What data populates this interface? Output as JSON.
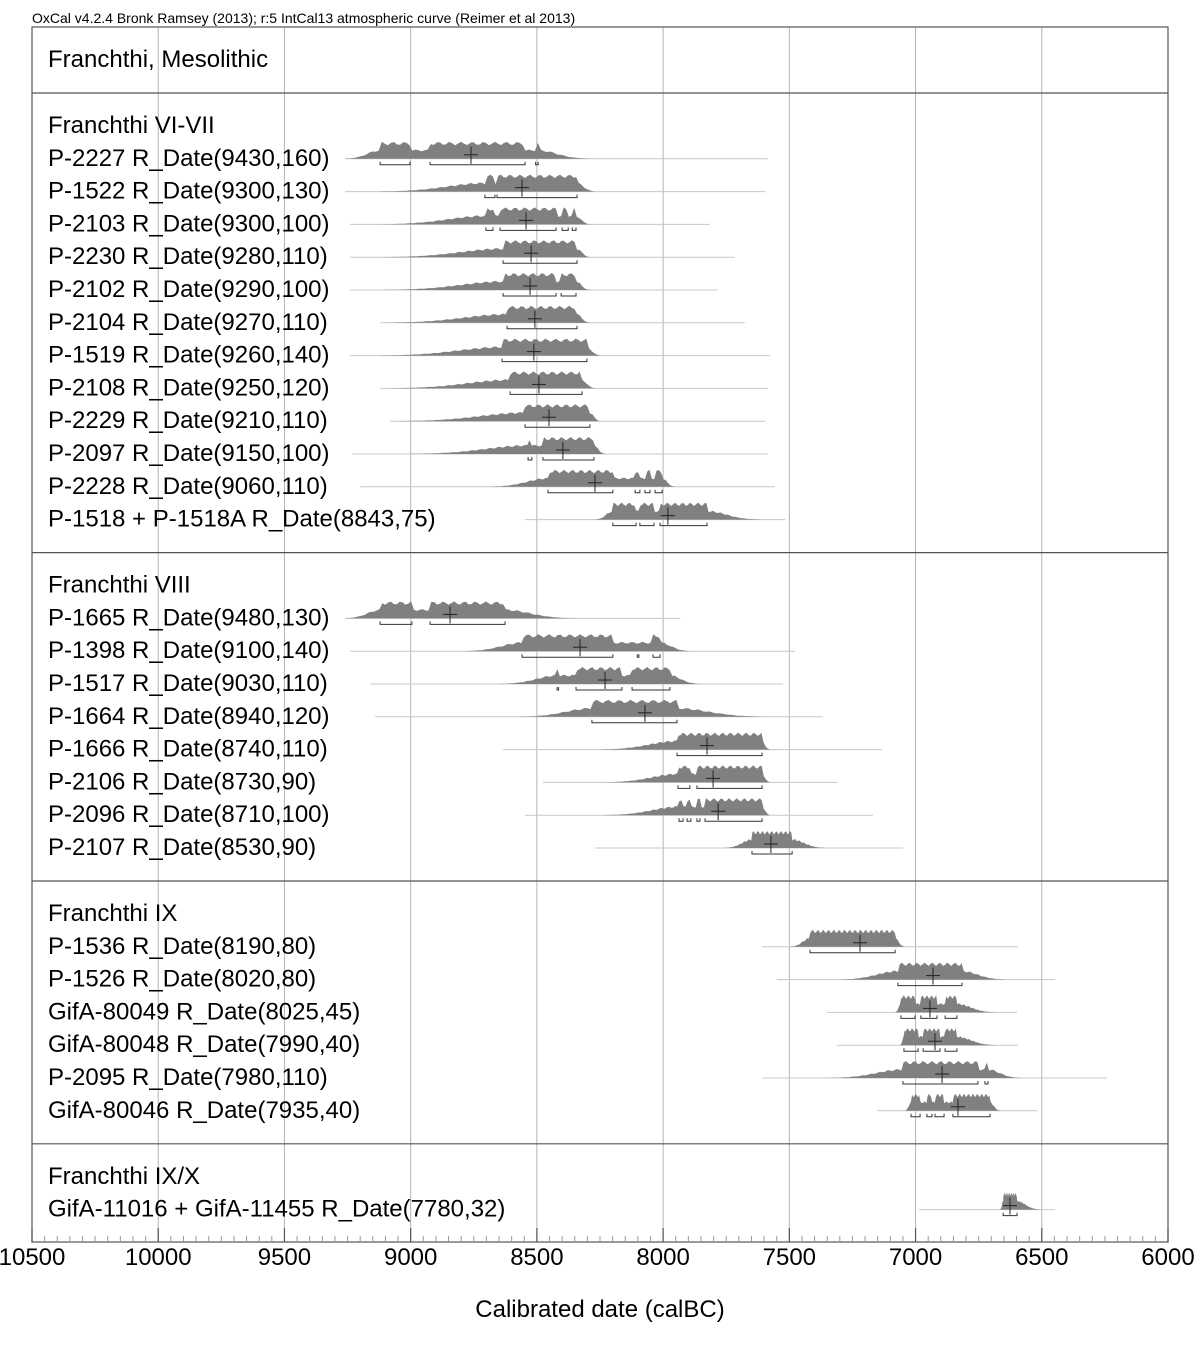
{
  "chart_data": {
    "type": "area",
    "caption": "OxCal v4.2.4 Bronk Ramsey (2013); r:5 IntCal13 atmospheric curve (Reimer et al 2013)",
    "title": "Franchthi, Mesolithic",
    "xlabel": "Calibrated date (calBC)",
    "xlim": [
      10500,
      6000
    ],
    "xticks": [
      10500,
      10000,
      9500,
      9000,
      8500,
      8000,
      7500,
      7000,
      6500,
      6000
    ],
    "minor_tick_step": 50,
    "grid": true,
    "colors": {
      "distribution": "#808080",
      "line": "#c8c8c8",
      "grid": "#b4b4b4",
      "frame": "#555555"
    },
    "groups": [
      {
        "name": "Franchthi VI-VII",
        "rows": [
          {
            "label": "P-2227 R_Date(9430,160)",
            "prior": [
              9260,
              7585
            ],
            "dist": [
              9260,
              8290
            ],
            "mean": 8761,
            "ranges": [
              [
                9121,
                9003
              ],
              [
                8923,
                8547
              ],
              [
                8505,
                8495
              ]
            ]
          },
          {
            "label": "P-1522 R_Date(9300,130)",
            "prior": [
              9260,
              7596
            ],
            "dist": [
              9121,
              8270
            ],
            "mean": 8559,
            "ranges": [
              [
                8706,
                8666
              ],
              [
                8658,
                8341
              ]
            ]
          },
          {
            "label": "P-2103 R_Date(9300,100)",
            "prior": [
              9240,
              7814
            ],
            "dist": [
              9121,
              8290
            ],
            "mean": 8543,
            "ranges": [
              [
                8702,
                8674
              ],
              [
                8646,
                8424
              ],
              [
                8400,
                8376
              ],
              [
                8360,
                8345
              ]
            ]
          },
          {
            "label": "P-2230 R_Date(9280,110)",
            "prior": [
              9240,
              7716
            ],
            "dist": [
              9101,
              8290
            ],
            "mean": 8523,
            "ranges": [
              [
                8634,
                8341
              ]
            ]
          },
          {
            "label": "P-2102 R_Date(9290,100)",
            "prior": [
              9240,
              7783
            ],
            "dist": [
              9101,
              8290
            ],
            "mean": 8527,
            "ranges": [
              [
                8634,
                8424
              ],
              [
                8404,
                8345
              ]
            ]
          },
          {
            "label": "P-2104 R_Date(9270,110)",
            "prior": [
              9121,
              7676
            ],
            "dist": [
              9101,
              8290
            ],
            "mean": 8508,
            "ranges": [
              [
                8618,
                8341
              ]
            ]
          },
          {
            "label": "P-1519 R_Date(9260,140)",
            "prior": [
              9240,
              7577
            ],
            "dist": [
              9121,
              8250
            ],
            "mean": 8512,
            "ranges": [
              [
                8638,
                8302
              ]
            ]
          },
          {
            "label": "P-2108 R_Date(9250,120)",
            "prior": [
              9121,
              7585
            ],
            "dist": [
              9081,
              8270
            ],
            "mean": 8492,
            "ranges": [
              [
                8606,
                8321
              ]
            ]
          },
          {
            "label": "P-2229 R_Date(9210,110)",
            "prior": [
              9082,
              7596
            ],
            "dist": [
              9042,
              8250
            ],
            "mean": 8452,
            "ranges": [
              [
                8547,
                8290
              ]
            ]
          },
          {
            "label": "P-2097 R_Date(9150,100)",
            "prior": [
              9232,
              7585
            ],
            "dist": [
              9002,
              8230
            ],
            "mean": 8397,
            "ranges": [
              [
                8535,
                8520
              ],
              [
                8476,
                8274
              ]
            ]
          },
          {
            "label": "P-2228 R_Date(9060,110)",
            "prior": [
              9200,
              7557
            ],
            "dist": [
              8686,
              7953
            ],
            "mean": 8270,
            "ranges": [
              [
                8456,
                8199
              ],
              [
                8111,
                8092
              ],
              [
                8072,
                8052
              ],
              [
                8032,
                8004
              ]
            ]
          },
          {
            "label": "P-1518 + P-1518A R_Date(8843,75)",
            "prior": [
              8547,
              7517
            ],
            "dist": [
              8270,
              7616
            ],
            "mean": 7981,
            "ranges": [
              [
                8199,
                8107
              ],
              [
                8092,
                8036
              ],
              [
                8012,
                7826
              ]
            ]
          }
        ]
      },
      {
        "name": "Franchthi VIII",
        "rows": [
          {
            "label": "P-1665 R_Date(9480,130)",
            "prior": [
              9260,
              7933
            ],
            "dist": [
              9260,
              8349
            ],
            "mean": 8844,
            "ranges": [
              [
                9121,
                8995
              ],
              [
                8923,
                8626
              ]
            ]
          },
          {
            "label": "P-1398 R_Date(9100,140)",
            "prior": [
              9240,
              7478
            ],
            "dist": [
              8785,
              7894
            ],
            "mean": 8329,
            "ranges": [
              [
                8559,
                8199
              ],
              [
                8102,
                8096
              ],
              [
                8040,
                8012
              ]
            ]
          },
          {
            "label": "P-1517 R_Date(9030,110)",
            "prior": [
              9161,
              7525
            ],
            "dist": [
              8646,
              7855
            ],
            "mean": 8230,
            "ranges": [
              [
                8420,
                8414
              ],
              [
                8345,
                8163
              ],
              [
                8123,
                7973
              ]
            ]
          },
          {
            "label": "P-1664 R_Date(8940,120)",
            "prior": [
              9141,
              7367
            ],
            "dist": [
              8567,
              7596
            ],
            "mean": 8072,
            "ranges": [
              [
                8282,
                7945
              ]
            ]
          },
          {
            "label": "P-1666 R_Date(8740,110)",
            "prior": [
              8634,
              7133
            ],
            "dist": [
              8250,
              7577
            ],
            "mean": 7826,
            "ranges": [
              [
                7945,
                7608
              ]
            ]
          },
          {
            "label": "P-2106 R_Date(8730,90)",
            "prior": [
              8476,
              7307
            ],
            "dist": [
              8230,
              7577
            ],
            "mean": 7802,
            "ranges": [
              [
                7941,
                7894
              ],
              [
                7866,
                7608
              ]
            ]
          },
          {
            "label": "P-2096 R_Date(8710,100)",
            "prior": [
              8547,
              7169
            ],
            "dist": [
              8230,
              7577
            ],
            "mean": 7782,
            "ranges": [
              [
                7937,
                7921
              ],
              [
                7905,
                7890
              ],
              [
                7866,
                7854
              ],
              [
                7834,
                7608
              ]
            ]
          },
          {
            "label": "P-2107 R_Date(8530,90)",
            "prior": [
              8270,
              7050
            ],
            "dist": [
              7755,
              7359
            ],
            "mean": 7573,
            "ranges": [
              [
                7648,
                7489
              ]
            ]
          }
        ]
      },
      {
        "name": "Franchthi IX",
        "rows": [
          {
            "label": "P-1536 R_Date(8190,80)",
            "prior": [
              7608,
              6594
            ],
            "dist": [
              7497,
              7042
            ],
            "mean": 7220,
            "ranges": [
              [
                7418,
                7081
              ]
            ]
          },
          {
            "label": "P-1526 R_Date(8020,80)",
            "prior": [
              7549,
              6448
            ],
            "dist": [
              7299,
              6646
            ],
            "mean": 6931,
            "ranges": [
              [
                7070,
                6816
              ]
            ]
          },
          {
            "label": "GifA-80049 R_Date(8025,45)",
            "prior": [
              7351,
              6598
            ],
            "dist": [
              7082,
              6685
            ],
            "mean": 6943,
            "ranges": [
              [
                7058,
                7002
              ],
              [
                6979,
                6915
              ],
              [
                6883,
                6836
              ]
            ]
          },
          {
            "label": "GifA-80048 R_Date(7990,40)",
            "prior": [
              7312,
              6594
            ],
            "dist": [
              7062,
              6685
            ],
            "mean": 6923,
            "ranges": [
              [
                7046,
                6990
              ],
              [
                6970,
                6903
              ],
              [
                6883,
                6836
              ]
            ]
          },
          {
            "label": "P-2095 R_Date(7980,110)",
            "prior": [
              7608,
              6242
            ],
            "dist": [
              7339,
              6586
            ],
            "mean": 6895,
            "ranges": [
              [
                7050,
                6753
              ],
              [
                6725,
                6713
              ]
            ]
          },
          {
            "label": "GifA-80046 R_Date(7935,40)",
            "prior": [
              7153,
              6519
            ],
            "dist": [
              7042,
              6665
            ],
            "mean": 6832,
            "ranges": [
              [
                7018,
                6982
              ],
              [
                6955,
                6935
              ],
              [
                6923,
                6887
              ],
              [
                6852,
                6705
              ]
            ]
          }
        ]
      },
      {
        "name": "Franchthi IX/X",
        "rows": [
          {
            "label": "GifA-11016 + GifA-11455 R_Date(7780,32)",
            "prior": [
              6986,
              6448
            ],
            "dist": [
              6665,
              6507
            ],
            "mean": 6626,
            "ranges": [
              [
                6653,
                6598
              ]
            ]
          }
        ]
      }
    ]
  }
}
